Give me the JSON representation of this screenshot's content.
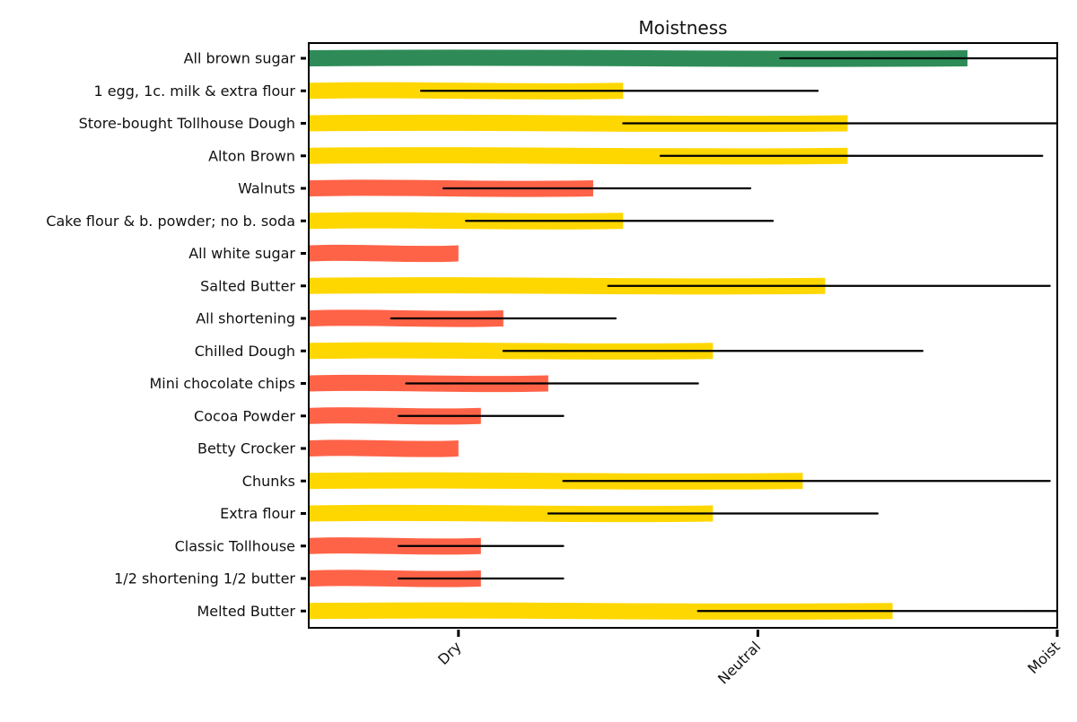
{
  "chart_data": {
    "type": "bar",
    "orientation": "horizontal",
    "title": "Moistness",
    "xlabel": "",
    "ylabel": "",
    "xlim": [
      0,
      5
    ],
    "x_ticks": [
      {
        "value": 1,
        "label": "Dry"
      },
      {
        "value": 3,
        "label": "Neutral"
      },
      {
        "value": 5,
        "label": "Moist"
      }
    ],
    "grid": false,
    "legend": "none",
    "colors": {
      "moist": "#2e8b57",
      "neutral": "#ffd700",
      "dry": "#ff6347",
      "error_bar": "#000000"
    },
    "categories": [
      "All brown sugar",
      "1 egg, 1c. milk & extra flour",
      "Store-bought Tollhouse Dough",
      "Alton Brown",
      "Walnuts",
      "Cake flour & b. powder; no b. soda",
      "All white sugar",
      "Salted Butter",
      "All shortening",
      "Chilled Dough",
      "Mini chocolate chips",
      "Cocoa Powder",
      "Betty Crocker",
      "Chunks",
      "Extra flour",
      "Classic Tollhouse",
      "1/2 shortening 1/2 butter",
      "Melted Butter"
    ],
    "values": [
      4.4,
      2.1,
      3.6,
      3.6,
      1.9,
      2.1,
      1.0,
      3.45,
      1.3,
      2.7,
      1.6,
      1.15,
      1.0,
      3.3,
      2.7,
      1.15,
      1.15,
      3.9
    ],
    "error_low": [
      3.15,
      0.75,
      2.1,
      2.35,
      0.9,
      1.05,
      1.0,
      2.0,
      0.55,
      1.3,
      0.65,
      0.6,
      1.0,
      1.7,
      1.6,
      0.6,
      0.6,
      2.6
    ],
    "error_high": [
      5.0,
      3.4,
      5.0,
      4.9,
      2.95,
      3.1,
      1.0,
      4.95,
      2.05,
      4.1,
      2.6,
      1.7,
      1.0,
      4.95,
      3.8,
      1.7,
      1.7,
      5.0
    ],
    "bar_class": [
      "moist",
      "neutral",
      "neutral",
      "neutral",
      "dry",
      "neutral",
      "dry",
      "neutral",
      "dry",
      "neutral",
      "dry",
      "dry",
      "dry",
      "neutral",
      "neutral",
      "dry",
      "dry",
      "neutral"
    ]
  }
}
